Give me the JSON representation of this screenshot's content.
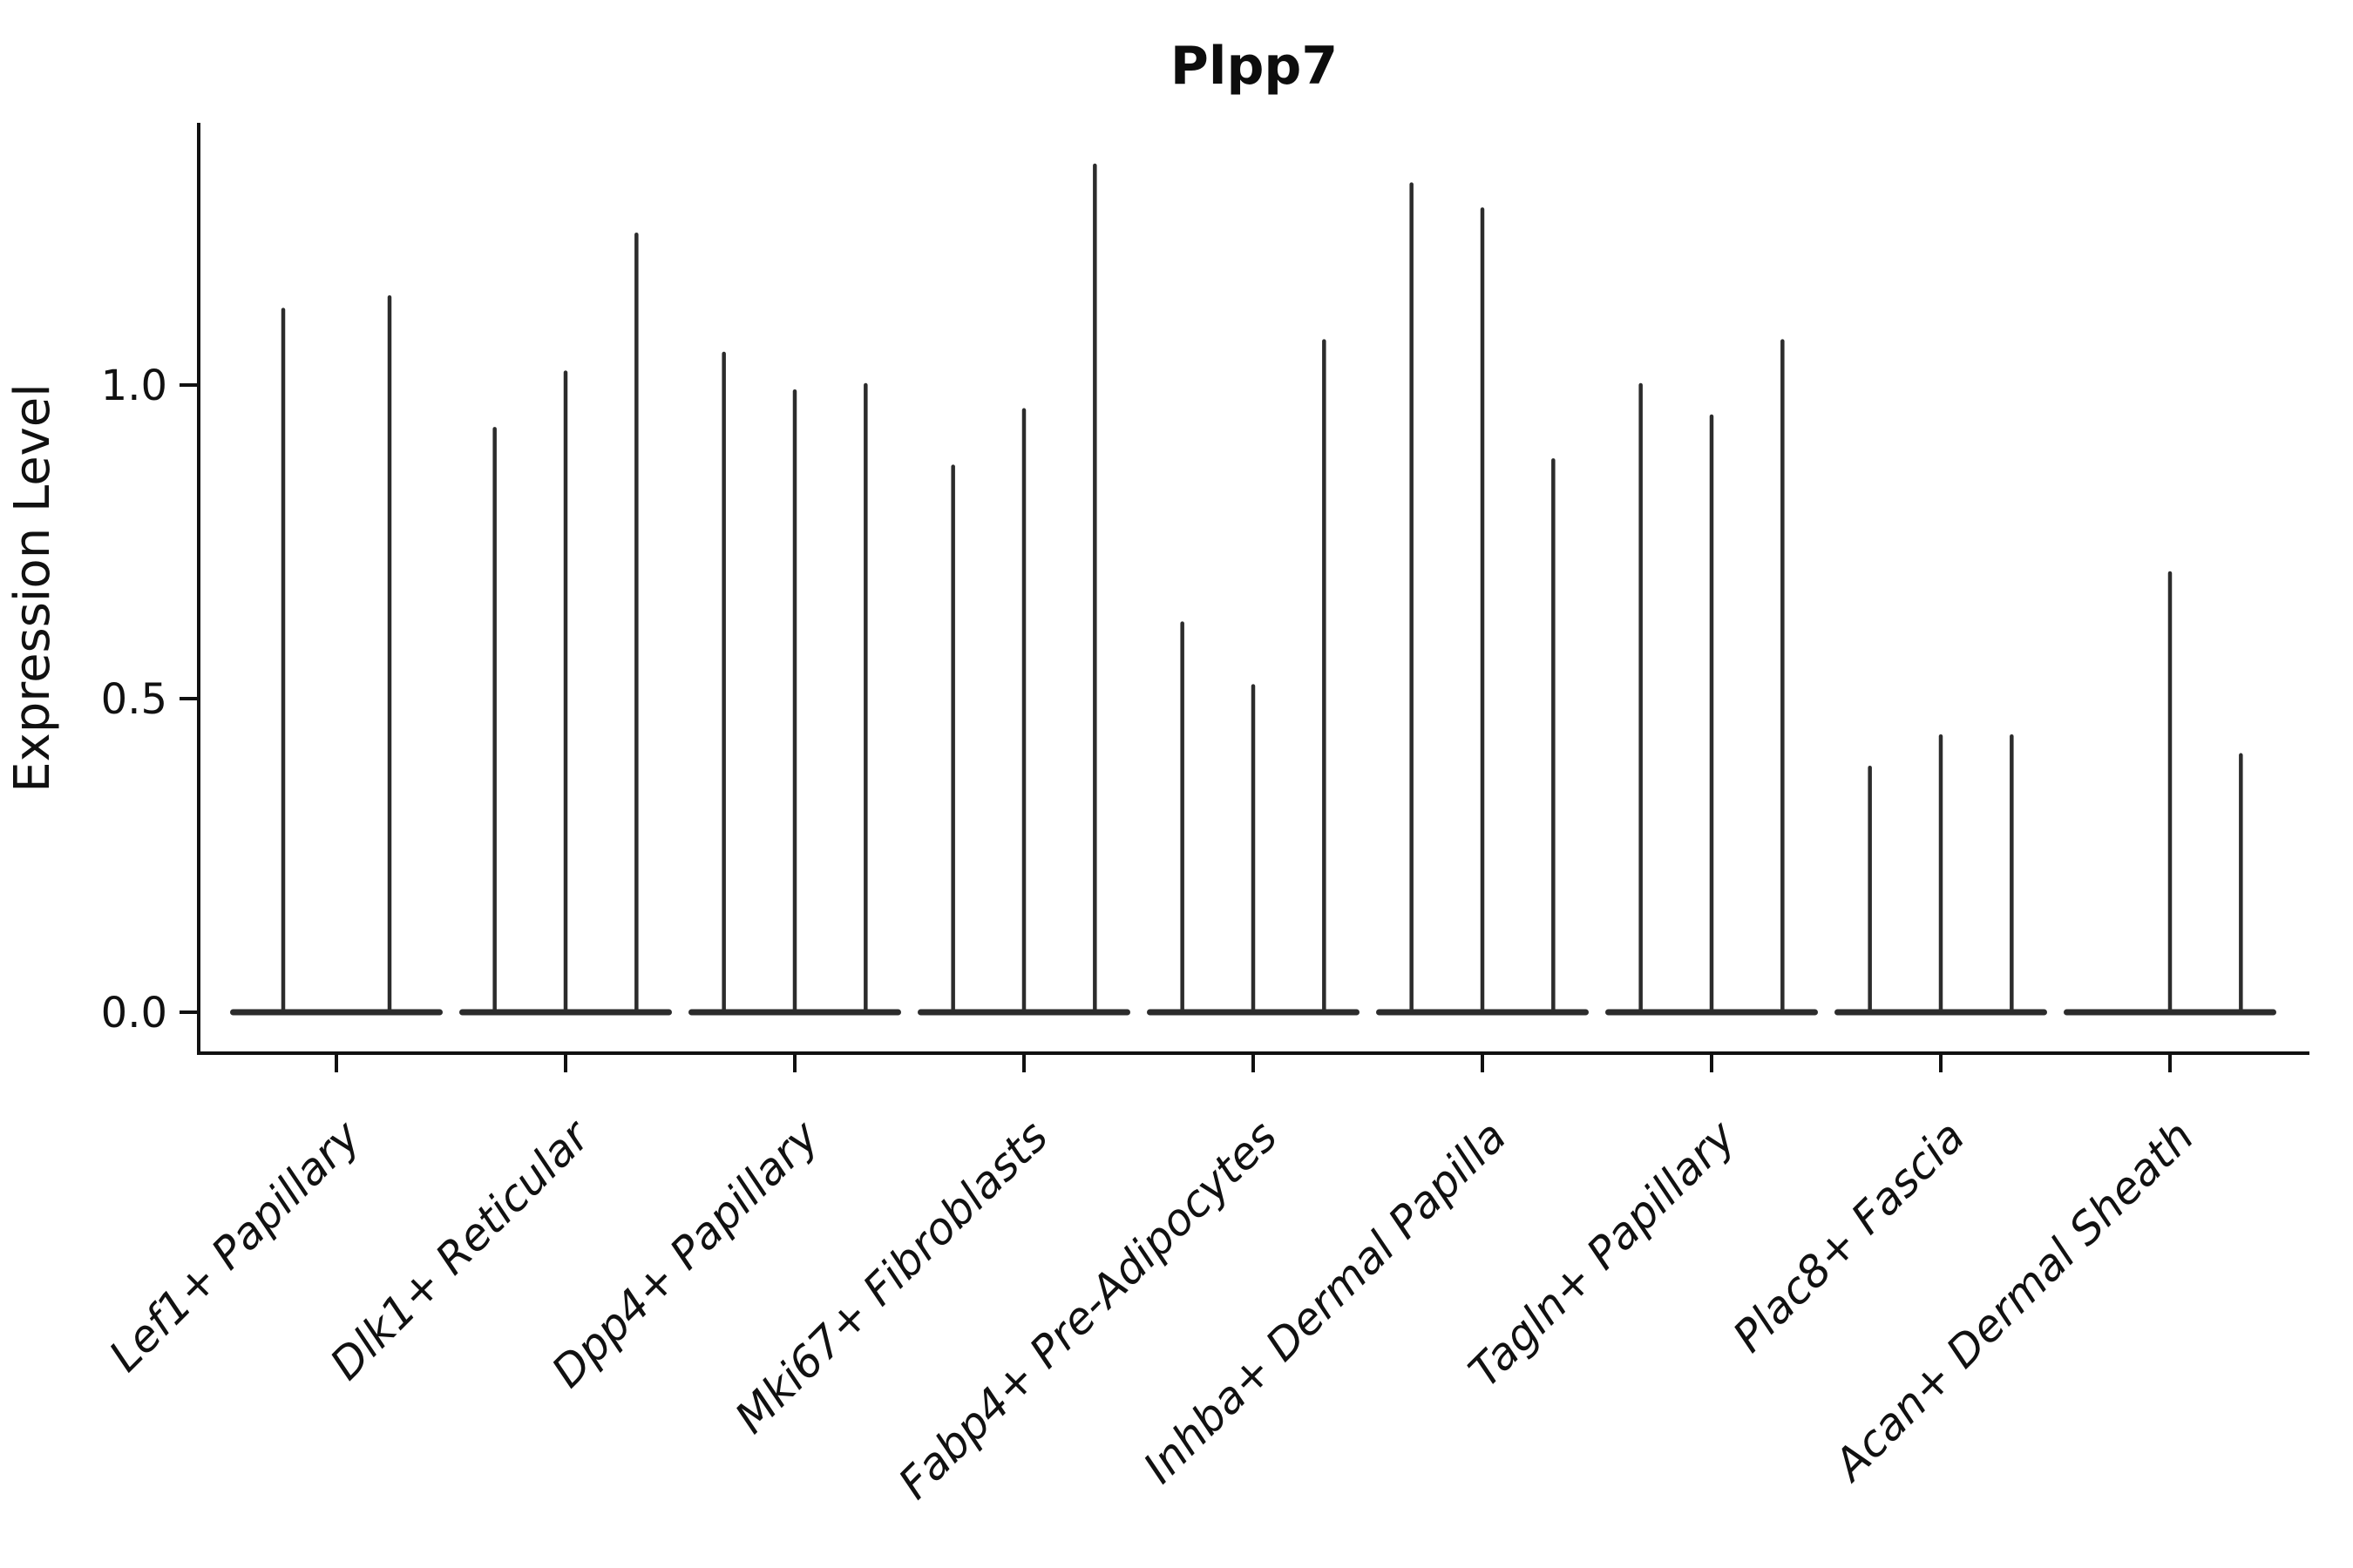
{
  "figure": {
    "title": "Plpp7",
    "background_color": "#ffffff"
  },
  "chart_data": {
    "type": "violin",
    "title": "Plpp7",
    "xlabel": "",
    "ylabel": "Expression Level",
    "ylim": [
      -0.07,
      1.42
    ],
    "ytick_values": [
      0.0,
      0.5,
      1.0
    ],
    "ytick_labels": [
      "0.0",
      "0.5",
      "1.0"
    ],
    "grid": false,
    "legend_position": "none",
    "categories": [
      "Lef1+ Papillary",
      "Dlk1+ Reticular",
      "Dpp4+ Papillary",
      "Mki67+ Fibroblasts",
      "Fabp4+ Pre-Adipocytes",
      "Inhba+ Dermal Papilla",
      "Tagln+ Papillary",
      "Plac8+ Fascia",
      "Acan+ Dermal Sheath"
    ],
    "groups": [
      {
        "category": "Lef1+ Papillary",
        "violin_peaks": [
          1.12,
          1.14
        ]
      },
      {
        "category": "Dlk1+ Reticular",
        "violin_peaks": [
          0.93,
          1.02,
          1.24
        ]
      },
      {
        "category": "Dpp4+ Papillary",
        "violin_peaks": [
          1.05,
          0.99,
          1.0
        ]
      },
      {
        "category": "Mki67+ Fibroblasts",
        "violin_peaks": [
          0.87,
          0.96,
          1.35
        ]
      },
      {
        "category": "Fabp4+ Pre-Adipocytes",
        "violin_peaks": [
          0.62,
          0.52,
          1.07
        ]
      },
      {
        "category": "Inhba+ Dermal Papilla",
        "violin_peaks": [
          1.32,
          1.28,
          0.88
        ]
      },
      {
        "category": "Tagln+ Papillary",
        "violin_peaks": [
          1.0,
          0.95,
          1.07
        ]
      },
      {
        "category": "Plac8+ Fascia",
        "violin_peaks": [
          0.39,
          0.44,
          0.44
        ]
      },
      {
        "category": "Acan+ Dermal Sheath",
        "violin_peaks": [
          0.0,
          0.7,
          0.41
        ]
      }
    ],
    "notes": "Each category holds narrow violins collapsed at 0 expression with a thin spike up to its maximum value; a peak of 0 means a flat violin with no spike.",
    "colors": {
      "violin": "#2c2c2c",
      "axis": "#111111",
      "text": "#111111",
      "background": "#ffffff"
    }
  }
}
